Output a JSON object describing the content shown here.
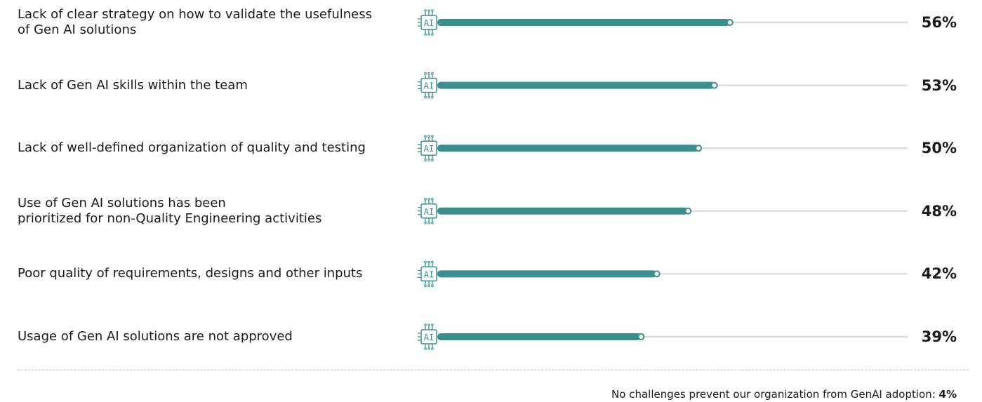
{
  "chart_data": {
    "type": "bar",
    "orientation": "horizontal",
    "categories": [
      "Lack of clear strategy on how to validate the usefulness\nof Gen AI solutions",
      "Lack of Gen AI skills within the team",
      "Lack of well-defined organization of quality and testing",
      "Use of Gen AI solutions has been\nprioritized for non-Quality Engineering activities",
      "Poor quality of requirements, designs and other inputs",
      "Usage of Gen AI solutions are not approved"
    ],
    "values": [
      56,
      53,
      50,
      48,
      42,
      39
    ],
    "value_labels": [
      "56%",
      "53%",
      "50%",
      "48%",
      "42%",
      "39%"
    ],
    "color": "#3a8f8f",
    "xlim": [
      0,
      90
    ],
    "icon_label": "AI",
    "note": {
      "text": "No challenges prevent our organization from GenAI adoption: ",
      "value": 4,
      "value_label": "4%"
    }
  }
}
